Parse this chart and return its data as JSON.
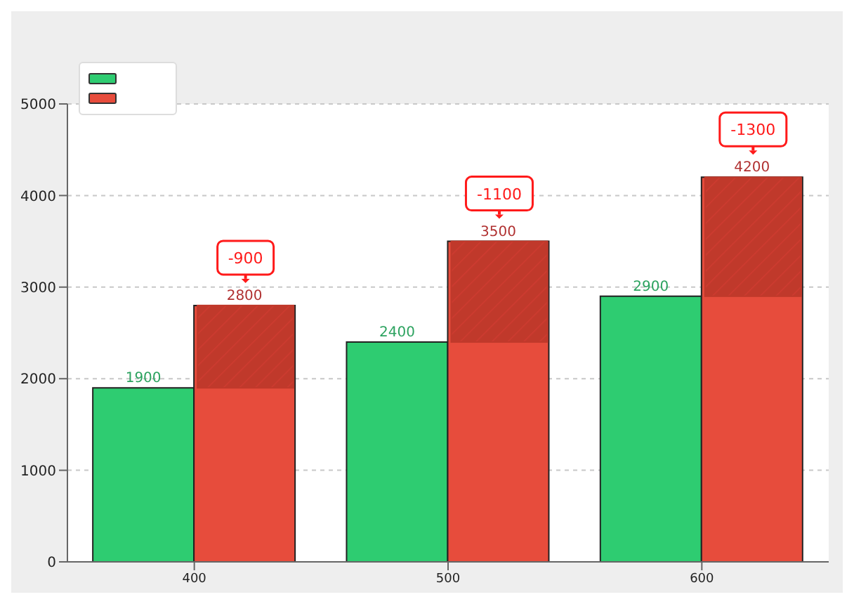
{
  "chart_data": {
    "type": "bar",
    "categories": [
      "400",
      "500",
      "600"
    ],
    "series": [
      {
        "color": "#2ecc71",
        "values": [
          1900,
          2400,
          2900
        ],
        "value_labels": [
          "1900",
          "2400",
          "2900"
        ]
      },
      {
        "color": "#e74c3c",
        "values": [
          2800,
          3500,
          4200
        ],
        "value_labels": [
          "2800",
          "3500",
          "4200"
        ]
      },
      {
        "color": "#c0392b",
        "values": [
          900,
          1100,
          1300
        ],
        "base": [
          1900,
          2400,
          2900
        ]
      }
    ],
    "ylim": [
      0,
      5000
    ],
    "yticks": [
      0,
      1000,
      2000,
      3000,
      4000,
      5000
    ],
    "grid": "y",
    "annotations": [
      "-900",
      "-1100",
      "-1300"
    ]
  }
}
